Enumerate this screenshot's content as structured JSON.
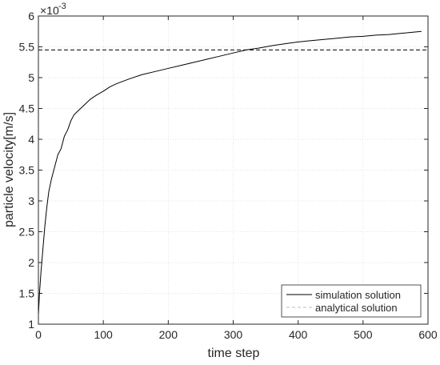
{
  "chart_data": {
    "type": "line",
    "title": "",
    "xlabel": "time step",
    "ylabel": "particle velocity[m/s]",
    "y_multiplier_label": "×10",
    "y_multiplier_exponent": "-3",
    "xlim": [
      0,
      600
    ],
    "ylim": [
      1,
      6
    ],
    "xticks": [
      0,
      100,
      200,
      300,
      400,
      500,
      600
    ],
    "yticks": [
      1,
      1.5,
      2,
      2.5,
      3,
      3.5,
      4,
      4.5,
      5,
      5.5,
      6
    ],
    "grid": true,
    "legend_position": "bottom-right",
    "series": [
      {
        "name": "simulation solution",
        "style": "solid",
        "color": "#000000",
        "x": [
          0,
          2,
          4,
          6,
          8,
          10,
          13,
          16,
          20,
          25,
          30,
          35,
          40,
          45,
          50,
          55,
          60,
          70,
          80,
          90,
          100,
          110,
          120,
          140,
          160,
          180,
          200,
          220,
          240,
          260,
          280,
          300,
          320,
          340,
          360,
          380,
          400,
          420,
          440,
          460,
          480,
          500,
          520,
          540,
          560,
          580,
          590
        ],
        "y": [
          1.15,
          1.55,
          1.85,
          2.1,
          2.35,
          2.6,
          2.9,
          3.15,
          3.35,
          3.55,
          3.75,
          3.85,
          4.05,
          4.15,
          4.3,
          4.4,
          4.45,
          4.55,
          4.65,
          4.72,
          4.78,
          4.85,
          4.9,
          4.98,
          5.05,
          5.1,
          5.15,
          5.2,
          5.25,
          5.3,
          5.35,
          5.4,
          5.45,
          5.48,
          5.52,
          5.55,
          5.58,
          5.6,
          5.62,
          5.64,
          5.66,
          5.67,
          5.69,
          5.7,
          5.72,
          5.74,
          5.75
        ]
      },
      {
        "name": "analytical solution",
        "style": "dashed",
        "color": "#000000",
        "x": [
          0,
          600
        ],
        "y": [
          5.45,
          5.45
        ]
      }
    ]
  }
}
